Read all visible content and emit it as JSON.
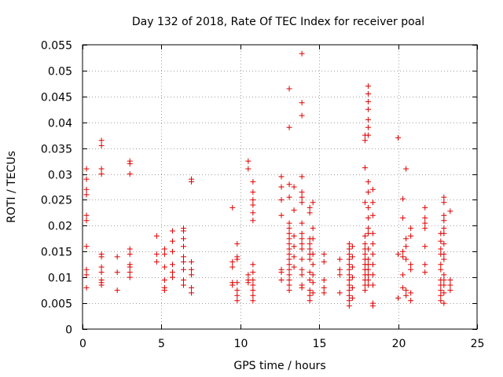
{
  "chart_data": {
    "type": "scatter",
    "title": "Day 132 of 2018, Rate Of TEC Index for receiver poal",
    "xlabel": "GPS time / hours",
    "ylabel": "ROTI / TECUs",
    "xlim": [
      0,
      25
    ],
    "ylim": [
      0,
      0.055
    ],
    "xticks": [
      0,
      5,
      10,
      15,
      20,
      25
    ],
    "xtick_labels": [
      "0",
      "5",
      "10",
      "15",
      "20",
      "25"
    ],
    "yticks": [
      0,
      0.005,
      0.01,
      0.015,
      0.02,
      0.025,
      0.03,
      0.035,
      0.04,
      0.045,
      0.05,
      0.055
    ],
    "ytick_labels": [
      "0",
      "0.005",
      "0.01",
      "0.015",
      "0.02",
      "0.025",
      "0.03",
      "0.035",
      "0.04",
      "0.045",
      "0.05",
      "0.055"
    ],
    "grid": true,
    "marker": "+",
    "color": "#e00000",
    "series": [
      {
        "name": "ROTI",
        "points": [
          [
            0.25,
            0.031
          ],
          [
            0.25,
            0.029
          ],
          [
            0.25,
            0.027
          ],
          [
            0.25,
            0.026
          ],
          [
            0.25,
            0.022
          ],
          [
            0.25,
            0.021
          ],
          [
            0.25,
            0.016
          ],
          [
            0.25,
            0.0115
          ],
          [
            0.25,
            0.0105
          ],
          [
            0.25,
            0.008
          ],
          [
            1.2,
            0.0365
          ],
          [
            1.2,
            0.0355
          ],
          [
            1.2,
            0.031
          ],
          [
            1.2,
            0.03
          ],
          [
            1.2,
            0.0145
          ],
          [
            1.2,
            0.014
          ],
          [
            1.2,
            0.012
          ],
          [
            1.2,
            0.011
          ],
          [
            1.2,
            0.0095
          ],
          [
            1.2,
            0.009
          ],
          [
            1.2,
            0.0085
          ],
          [
            2.2,
            0.014
          ],
          [
            2.2,
            0.011
          ],
          [
            2.2,
            0.0075
          ],
          [
            3.0,
            0.0325
          ],
          [
            3.0,
            0.032
          ],
          [
            3.0,
            0.03
          ],
          [
            3.0,
            0.0155
          ],
          [
            3.0,
            0.0145
          ],
          [
            3.0,
            0.0125
          ],
          [
            3.0,
            0.012
          ],
          [
            3.0,
            0.011
          ],
          [
            3.0,
            0.01
          ],
          [
            4.7,
            0.018
          ],
          [
            4.7,
            0.0145
          ],
          [
            4.7,
            0.013
          ],
          [
            5.2,
            0.0155
          ],
          [
            5.2,
            0.0145
          ],
          [
            5.2,
            0.012
          ],
          [
            5.2,
            0.0095
          ],
          [
            5.2,
            0.008
          ],
          [
            5.2,
            0.0075
          ],
          [
            5.7,
            0.019
          ],
          [
            5.7,
            0.017
          ],
          [
            5.7,
            0.015
          ],
          [
            5.7,
            0.0125
          ],
          [
            5.7,
            0.011
          ],
          [
            5.7,
            0.01
          ],
          [
            6.4,
            0.0195
          ],
          [
            6.4,
            0.019
          ],
          [
            6.4,
            0.0175
          ],
          [
            6.4,
            0.016
          ],
          [
            6.4,
            0.014
          ],
          [
            6.4,
            0.013
          ],
          [
            6.4,
            0.0115
          ],
          [
            6.4,
            0.0095
          ],
          [
            6.4,
            0.0085
          ],
          [
            6.9,
            0.029
          ],
          [
            6.9,
            0.0285
          ],
          [
            6.9,
            0.013
          ],
          [
            6.9,
            0.0115
          ],
          [
            6.9,
            0.0105
          ],
          [
            6.9,
            0.008
          ],
          [
            6.9,
            0.007
          ],
          [
            9.5,
            0.0235
          ],
          [
            9.5,
            0.013
          ],
          [
            9.5,
            0.012
          ],
          [
            9.5,
            0.009
          ],
          [
            9.5,
            0.0085
          ],
          [
            9.8,
            0.0165
          ],
          [
            9.8,
            0.014
          ],
          [
            9.8,
            0.0135
          ],
          [
            9.8,
            0.009
          ],
          [
            9.8,
            0.0075
          ],
          [
            9.8,
            0.0065
          ],
          [
            9.8,
            0.0055
          ],
          [
            10.5,
            0.0325
          ],
          [
            10.5,
            0.031
          ],
          [
            10.5,
            0.0105
          ],
          [
            10.5,
            0.0095
          ],
          [
            10.5,
            0.009
          ],
          [
            10.8,
            0.0285
          ],
          [
            10.8,
            0.0265
          ],
          [
            10.8,
            0.025
          ],
          [
            10.8,
            0.024
          ],
          [
            10.8,
            0.0225
          ],
          [
            10.8,
            0.021
          ],
          [
            10.8,
            0.0125
          ],
          [
            10.8,
            0.011
          ],
          [
            10.8,
            0.0095
          ],
          [
            10.8,
            0.0085
          ],
          [
            10.8,
            0.0075
          ],
          [
            10.8,
            0.0065
          ],
          [
            10.8,
            0.0055
          ],
          [
            12.6,
            0.0295
          ],
          [
            12.6,
            0.0275
          ],
          [
            12.6,
            0.025
          ],
          [
            12.6,
            0.022
          ],
          [
            12.6,
            0.0115
          ],
          [
            12.6,
            0.011
          ],
          [
            12.6,
            0.0095
          ],
          [
            13.1,
            0.0465
          ],
          [
            13.1,
            0.039
          ],
          [
            13.1,
            0.028
          ],
          [
            13.1,
            0.0255
          ],
          [
            13.1,
            0.0205
          ],
          [
            13.1,
            0.0195
          ],
          [
            13.1,
            0.0185
          ],
          [
            13.1,
            0.0175
          ],
          [
            13.1,
            0.0165
          ],
          [
            13.1,
            0.0155
          ],
          [
            13.1,
            0.0145
          ],
          [
            13.1,
            0.0135
          ],
          [
            13.1,
            0.0125
          ],
          [
            13.1,
            0.0115
          ],
          [
            13.1,
            0.0105
          ],
          [
            13.1,
            0.0095
          ],
          [
            13.1,
            0.0085
          ],
          [
            13.1,
            0.0075
          ],
          [
            13.4,
            0.0275
          ],
          [
            13.4,
            0.023
          ],
          [
            13.4,
            0.018
          ],
          [
            13.4,
            0.016
          ],
          [
            13.4,
            0.014
          ],
          [
            13.4,
            0.012
          ],
          [
            13.9,
            0.0533
          ],
          [
            13.9,
            0.0438
          ],
          [
            13.9,
            0.0413
          ],
          [
            13.9,
            0.0295
          ],
          [
            13.9,
            0.0265
          ],
          [
            13.9,
            0.0255
          ],
          [
            13.9,
            0.0245
          ],
          [
            13.9,
            0.0205
          ],
          [
            13.9,
            0.0185
          ],
          [
            13.9,
            0.0175
          ],
          [
            13.9,
            0.0165
          ],
          [
            13.9,
            0.0155
          ],
          [
            13.9,
            0.0135
          ],
          [
            13.9,
            0.0115
          ],
          [
            13.9,
            0.0105
          ],
          [
            13.9,
            0.0085
          ],
          [
            13.9,
            0.008
          ],
          [
            14.4,
            0.0235
          ],
          [
            14.4,
            0.0225
          ],
          [
            14.4,
            0.0175
          ],
          [
            14.4,
            0.0165
          ],
          [
            14.4,
            0.0155
          ],
          [
            14.4,
            0.0145
          ],
          [
            14.4,
            0.0135
          ],
          [
            14.4,
            0.011
          ],
          [
            14.4,
            0.0095
          ],
          [
            14.4,
            0.0075
          ],
          [
            14.4,
            0.0065
          ],
          [
            14.4,
            0.0055
          ],
          [
            14.6,
            0.0245
          ],
          [
            14.6,
            0.0195
          ],
          [
            14.6,
            0.0175
          ],
          [
            14.6,
            0.0145
          ],
          [
            14.6,
            0.0125
          ],
          [
            14.6,
            0.0105
          ],
          [
            14.6,
            0.009
          ],
          [
            14.6,
            0.007
          ],
          [
            15.3,
            0.0145
          ],
          [
            15.3,
            0.013
          ],
          [
            15.3,
            0.0095
          ],
          [
            15.3,
            0.008
          ],
          [
            15.3,
            0.007
          ],
          [
            16.3,
            0.0135
          ],
          [
            16.3,
            0.0115
          ],
          [
            16.3,
            0.0105
          ],
          [
            16.3,
            0.007
          ],
          [
            16.9,
            0.0165
          ],
          [
            16.9,
            0.0155
          ],
          [
            16.9,
            0.0145
          ],
          [
            16.9,
            0.0135
          ],
          [
            16.9,
            0.0125
          ],
          [
            16.9,
            0.0115
          ],
          [
            16.9,
            0.0105
          ],
          [
            16.9,
            0.0095
          ],
          [
            16.9,
            0.0085
          ],
          [
            16.9,
            0.0075
          ],
          [
            16.9,
            0.0065
          ],
          [
            16.9,
            0.0055
          ],
          [
            16.9,
            0.0045
          ],
          [
            17.1,
            0.016
          ],
          [
            17.1,
            0.014
          ],
          [
            17.1,
            0.012
          ],
          [
            17.1,
            0.01
          ],
          [
            17.1,
            0.008
          ],
          [
            17.1,
            0.006
          ],
          [
            17.9,
            0.0365
          ],
          [
            17.9,
            0.0375
          ],
          [
            17.9,
            0.0312
          ],
          [
            17.9,
            0.0245
          ],
          [
            17.9,
            0.018
          ],
          [
            17.9,
            0.0165
          ],
          [
            17.9,
            0.0155
          ],
          [
            17.9,
            0.0145
          ],
          [
            17.9,
            0.0135
          ],
          [
            17.9,
            0.0125
          ],
          [
            17.9,
            0.0115
          ],
          [
            17.9,
            0.0105
          ],
          [
            17.9,
            0.0095
          ],
          [
            17.9,
            0.0085
          ],
          [
            17.9,
            0.0075
          ],
          [
            18.1,
            0.047
          ],
          [
            18.1,
            0.0455
          ],
          [
            18.1,
            0.044
          ],
          [
            18.1,
            0.0425
          ],
          [
            18.1,
            0.0405
          ],
          [
            18.1,
            0.039
          ],
          [
            18.1,
            0.0375
          ],
          [
            18.1,
            0.0285
          ],
          [
            18.1,
            0.0265
          ],
          [
            18.1,
            0.0235
          ],
          [
            18.1,
            0.0215
          ],
          [
            18.1,
            0.0195
          ],
          [
            18.1,
            0.0185
          ],
          [
            18.1,
            0.0155
          ],
          [
            18.1,
            0.0135
          ],
          [
            18.1,
            0.0125
          ],
          [
            18.1,
            0.0115
          ],
          [
            18.1,
            0.0105
          ],
          [
            18.1,
            0.0095
          ],
          [
            18.1,
            0.0085
          ],
          [
            18.4,
            0.027
          ],
          [
            18.4,
            0.0245
          ],
          [
            18.4,
            0.022
          ],
          [
            18.4,
            0.0185
          ],
          [
            18.4,
            0.0165
          ],
          [
            18.4,
            0.0145
          ],
          [
            18.4,
            0.0125
          ],
          [
            18.4,
            0.0105
          ],
          [
            18.4,
            0.0085
          ],
          [
            18.4,
            0.005
          ],
          [
            18.4,
            0.0045
          ],
          [
            20.0,
            0.037
          ],
          [
            20.0,
            0.0145
          ],
          [
            20.0,
            0.006
          ],
          [
            20.3,
            0.0252
          ],
          [
            20.3,
            0.0215
          ],
          [
            20.3,
            0.015
          ],
          [
            20.3,
            0.014
          ],
          [
            20.3,
            0.0105
          ],
          [
            20.3,
            0.008
          ],
          [
            20.5,
            0.031
          ],
          [
            20.5,
            0.0175
          ],
          [
            20.5,
            0.016
          ],
          [
            20.5,
            0.0135
          ],
          [
            20.5,
            0.0075
          ],
          [
            20.5,
            0.0065
          ],
          [
            20.8,
            0.0195
          ],
          [
            20.8,
            0.018
          ],
          [
            20.8,
            0.0125
          ],
          [
            20.8,
            0.0115
          ],
          [
            20.8,
            0.007
          ],
          [
            20.8,
            0.0055
          ],
          [
            21.7,
            0.0235
          ],
          [
            21.7,
            0.0215
          ],
          [
            21.7,
            0.0205
          ],
          [
            21.7,
            0.0195
          ],
          [
            21.7,
            0.016
          ],
          [
            21.7,
            0.0125
          ],
          [
            21.7,
            0.011
          ],
          [
            22.7,
            0.0185
          ],
          [
            22.7,
            0.017
          ],
          [
            22.7,
            0.0155
          ],
          [
            22.7,
            0.0145
          ],
          [
            22.7,
            0.0125
          ],
          [
            22.7,
            0.0115
          ],
          [
            22.7,
            0.0095
          ],
          [
            22.7,
            0.0085
          ],
          [
            22.7,
            0.0075
          ],
          [
            22.7,
            0.0065
          ],
          [
            22.7,
            0.0055
          ],
          [
            22.9,
            0.0255
          ],
          [
            22.9,
            0.0245
          ],
          [
            22.9,
            0.022
          ],
          [
            22.9,
            0.021
          ],
          [
            22.9,
            0.0195
          ],
          [
            22.9,
            0.0185
          ],
          [
            22.9,
            0.0165
          ],
          [
            22.9,
            0.0145
          ],
          [
            22.9,
            0.0135
          ],
          [
            22.9,
            0.0105
          ],
          [
            22.9,
            0.0095
          ],
          [
            22.9,
            0.0085
          ],
          [
            22.9,
            0.007
          ],
          [
            22.9,
            0.005
          ],
          [
            23.3,
            0.0228
          ],
          [
            23.3,
            0.0095
          ],
          [
            23.3,
            0.0085
          ],
          [
            23.3,
            0.0075
          ]
        ]
      }
    ]
  }
}
